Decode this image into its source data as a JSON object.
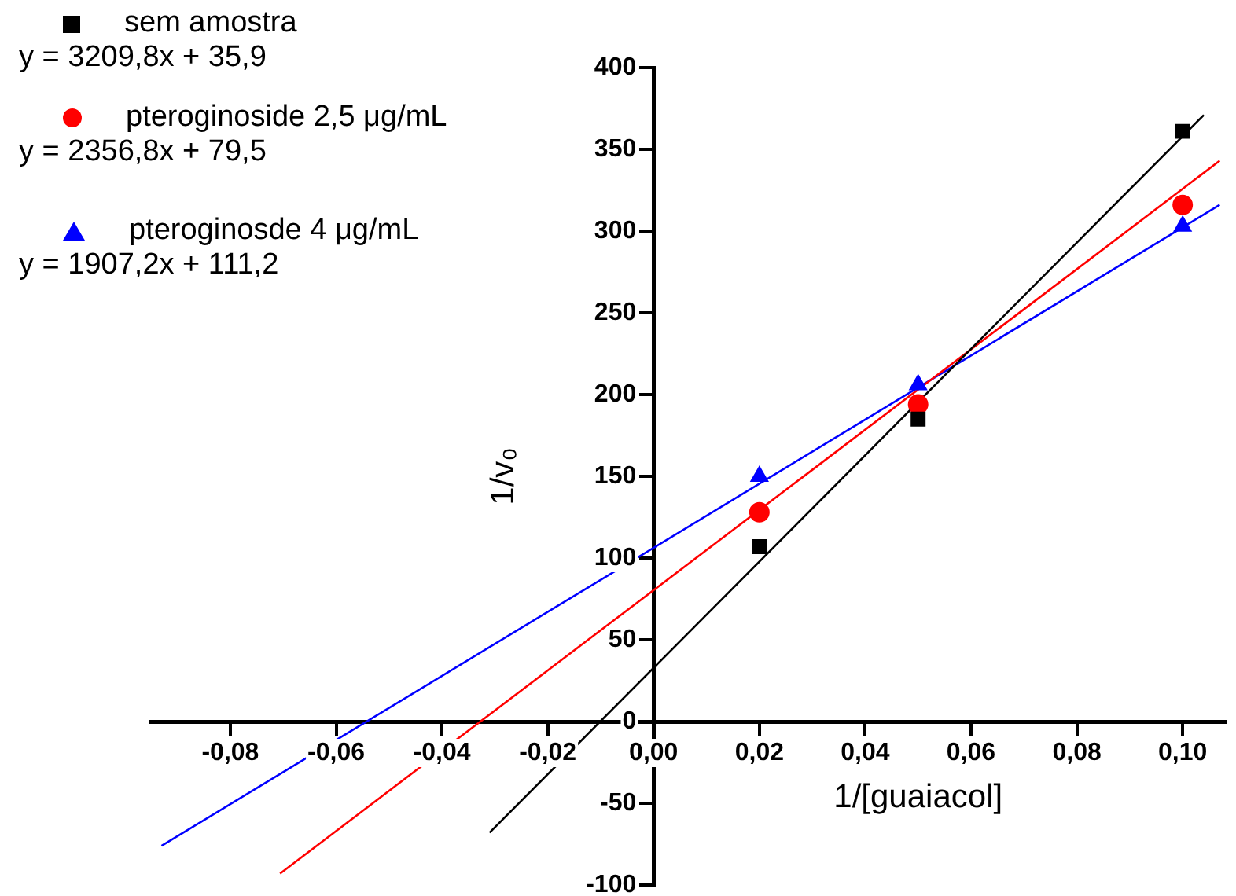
{
  "chart_data": {
    "type": "scatter",
    "xlabel": "1/[guaiacol]",
    "ylabel": "1/v₀",
    "xlim": [
      -0.095,
      0.108
    ],
    "ylim": [
      -100,
      400
    ],
    "xticks": [
      {
        "value": -0.08,
        "label": "-0,08"
      },
      {
        "value": -0.06,
        "label": "-0,06"
      },
      {
        "value": -0.04,
        "label": "-0,04"
      },
      {
        "value": -0.02,
        "label": "-0,02"
      },
      {
        "value": 0,
        "label": "0,00"
      },
      {
        "value": 0.02,
        "label": "0,02"
      },
      {
        "value": 0.04,
        "label": "0,04"
      },
      {
        "value": 0.06,
        "label": "0,06"
      },
      {
        "value": 0.08,
        "label": "0,08"
      },
      {
        "value": 0.1,
        "label": "0,10"
      }
    ],
    "yticks": [
      -100,
      -50,
      0,
      50,
      100,
      150,
      200,
      250,
      300,
      350,
      400
    ],
    "grid": false,
    "legend": "top left",
    "annotations": [
      "y = 3209,8x + 35,9",
      "y = 2356,8x + 79,5",
      "y = 1907,2x + 111,2"
    ],
    "x": [
      0.02,
      0.05,
      0.1
    ],
    "series": [
      {
        "name": "sem amostra",
        "type": "scatter",
        "marker": "square",
        "color": "#000000",
        "values": [
          107,
          185,
          361
        ]
      },
      {
        "name": "pteroginoside 2,5 μg/mL",
        "type": "scatter",
        "marker": "circle",
        "color": "#ff0000",
        "values": [
          128,
          194,
          316
        ]
      },
      {
        "name": "pteroginosde 4 μg/mL",
        "type": "scatter",
        "marker": "triangle",
        "color": "#0000ff",
        "values": [
          150,
          206,
          303
        ]
      },
      {
        "type": "line",
        "color": "#000000",
        "x": [
          -0.031,
          0.104
        ],
        "values": [
          -68,
          371
        ]
      },
      {
        "type": "line",
        "color": "#ff0000",
        "x": [
          -0.0706,
          0.107
        ],
        "values": [
          -93,
          343
        ]
      },
      {
        "type": "line",
        "color": "#0000ff",
        "x": [
          -0.093,
          0.107
        ],
        "values": [
          -76,
          316
        ]
      }
    ]
  }
}
